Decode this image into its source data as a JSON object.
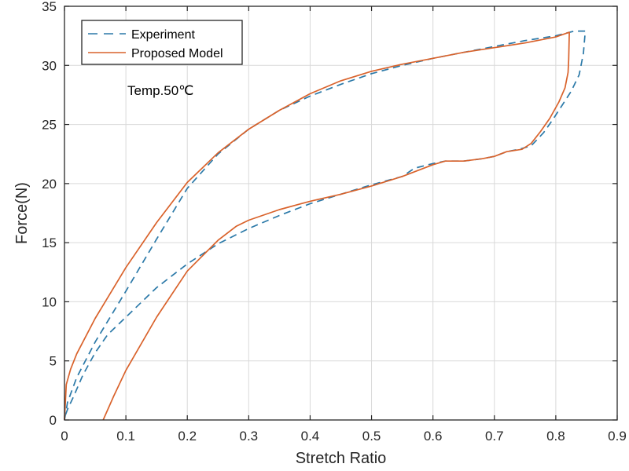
{
  "chart_data": {
    "type": "line",
    "title": "",
    "xlabel": "Stretch Ratio",
    "ylabel": "Force(N)",
    "xlim": [
      0,
      0.9
    ],
    "ylim": [
      0,
      35
    ],
    "xticks": [
      0,
      0.1,
      0.2,
      0.3,
      0.4,
      0.5,
      0.6,
      0.7,
      0.8,
      0.9
    ],
    "xtick_labels": [
      "0",
      "0.1",
      "0.2",
      "0.3",
      "0.4",
      "0.5",
      "0.6",
      "0.7",
      "0.8",
      "0.9"
    ],
    "yticks": [
      0,
      5,
      10,
      15,
      20,
      25,
      30,
      35
    ],
    "ytick_labels": [
      "0",
      "5",
      "10",
      "15",
      "20",
      "25",
      "30",
      "35"
    ],
    "grid": true,
    "legend_position": "top-left",
    "annotation": "Temp.50℃",
    "series": [
      {
        "name": "Experiment",
        "style": "dashed",
        "color": "#2b79a8",
        "points": [
          [
            0.0,
            0.0
          ],
          [
            0.005,
            1.5
          ],
          [
            0.02,
            3.6
          ],
          [
            0.05,
            6.6
          ],
          [
            0.1,
            10.9
          ],
          [
            0.15,
            15.3
          ],
          [
            0.2,
            19.6
          ],
          [
            0.25,
            22.5
          ],
          [
            0.3,
            24.6
          ],
          [
            0.35,
            26.2
          ],
          [
            0.4,
            27.4
          ],
          [
            0.45,
            28.4
          ],
          [
            0.5,
            29.3
          ],
          [
            0.55,
            30.0
          ],
          [
            0.6,
            30.6
          ],
          [
            0.65,
            31.1
          ],
          [
            0.7,
            31.6
          ],
          [
            0.75,
            32.1
          ],
          [
            0.8,
            32.5
          ],
          [
            0.83,
            32.9
          ],
          [
            0.848,
            32.9
          ],
          [
            0.845,
            31.0
          ],
          [
            0.838,
            29.2
          ],
          [
            0.825,
            27.8
          ],
          [
            0.81,
            26.6
          ],
          [
            0.795,
            25.4
          ],
          [
            0.78,
            24.3
          ],
          [
            0.76,
            23.2
          ],
          [
            0.74,
            22.9
          ],
          [
            0.72,
            22.7
          ],
          [
            0.7,
            22.3
          ],
          [
            0.68,
            22.1
          ],
          [
            0.65,
            21.9
          ],
          [
            0.62,
            21.9
          ],
          [
            0.6,
            21.7
          ],
          [
            0.57,
            21.3
          ],
          [
            0.55,
            20.6
          ],
          [
            0.5,
            19.9
          ],
          [
            0.45,
            19.1
          ],
          [
            0.4,
            18.3
          ],
          [
            0.35,
            17.3
          ],
          [
            0.3,
            16.2
          ],
          [
            0.25,
            14.9
          ],
          [
            0.2,
            13.2
          ],
          [
            0.15,
            11.2
          ],
          [
            0.1,
            8.7
          ],
          [
            0.07,
            7.2
          ],
          [
            0.05,
            5.7
          ],
          [
            0.03,
            3.8
          ],
          [
            0.015,
            2.0
          ],
          [
            0.005,
            0.9
          ],
          [
            0.0,
            0.2
          ]
        ]
      },
      {
        "name": "Proposed Model",
        "style": "solid",
        "color": "#d9622b",
        "points": [
          [
            0.0,
            0.0
          ],
          [
            0.003,
            3.0
          ],
          [
            0.01,
            4.3
          ],
          [
            0.02,
            5.6
          ],
          [
            0.05,
            8.6
          ],
          [
            0.1,
            12.9
          ],
          [
            0.15,
            16.7
          ],
          [
            0.2,
            20.1
          ],
          [
            0.25,
            22.6
          ],
          [
            0.3,
            24.6
          ],
          [
            0.35,
            26.2
          ],
          [
            0.4,
            27.6
          ],
          [
            0.45,
            28.7
          ],
          [
            0.5,
            29.5
          ],
          [
            0.55,
            30.1
          ],
          [
            0.6,
            30.6
          ],
          [
            0.65,
            31.1
          ],
          [
            0.7,
            31.5
          ],
          [
            0.75,
            31.9
          ],
          [
            0.8,
            32.4
          ],
          [
            0.822,
            32.8
          ],
          [
            0.821,
            30.5
          ],
          [
            0.82,
            29.4
          ],
          [
            0.815,
            28.1
          ],
          [
            0.805,
            26.9
          ],
          [
            0.79,
            25.5
          ],
          [
            0.775,
            24.4
          ],
          [
            0.76,
            23.4
          ],
          [
            0.745,
            22.9
          ],
          [
            0.72,
            22.7
          ],
          [
            0.7,
            22.3
          ],
          [
            0.68,
            22.1
          ],
          [
            0.65,
            21.9
          ],
          [
            0.62,
            21.9
          ],
          [
            0.6,
            21.6
          ],
          [
            0.57,
            21.0
          ],
          [
            0.55,
            20.6
          ],
          [
            0.5,
            19.8
          ],
          [
            0.45,
            19.1
          ],
          [
            0.4,
            18.5
          ],
          [
            0.35,
            17.8
          ],
          [
            0.3,
            16.9
          ],
          [
            0.28,
            16.4
          ],
          [
            0.25,
            15.2
          ],
          [
            0.2,
            12.6
          ],
          [
            0.15,
            8.7
          ],
          [
            0.1,
            4.2
          ],
          [
            0.08,
            2.0
          ],
          [
            0.063,
            0.0
          ]
        ]
      }
    ]
  }
}
